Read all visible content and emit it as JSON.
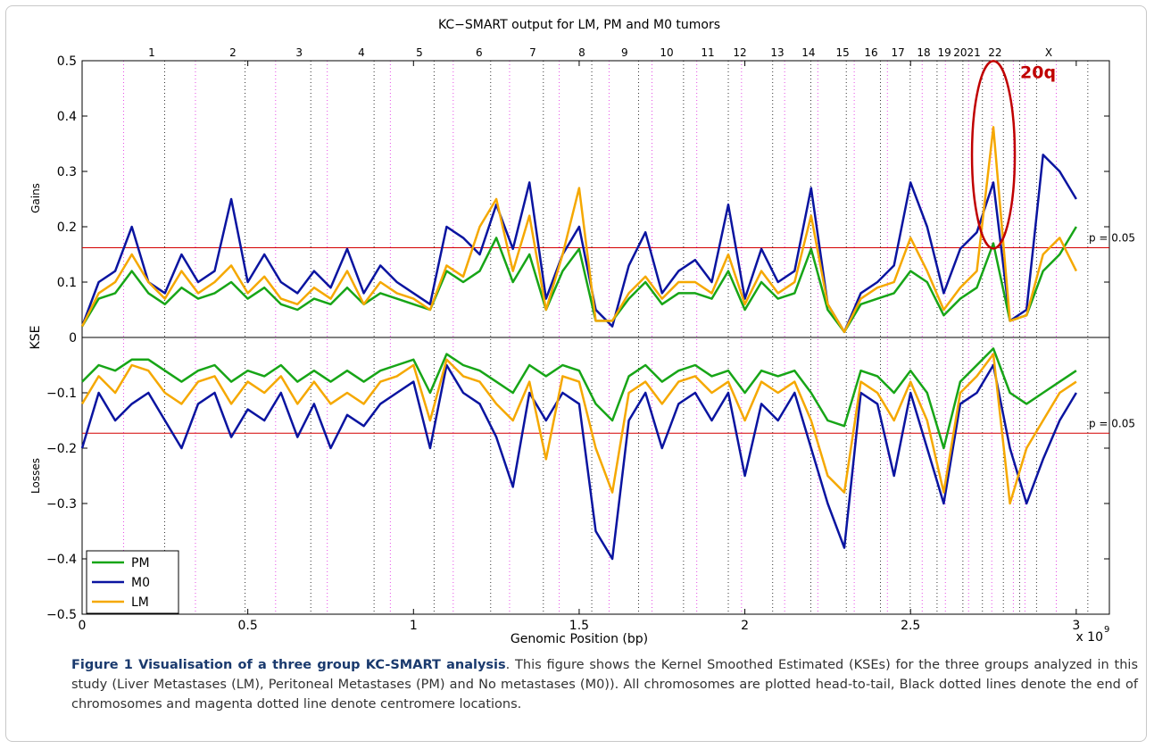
{
  "chart_data": {
    "type": "line",
    "title": "KC−SMART output for LM, PM and M0 tumors",
    "xlabel": "Genomic Position (bp)",
    "ylabel": "KSE",
    "gains_label": "Gains",
    "losses_label": "Losses",
    "x_multiplier": "x 10",
    "x_multiplier_exp": "9",
    "xlim": [
      0,
      3.1
    ],
    "ylim": [
      -0.5,
      0.5
    ],
    "xticks": [
      0,
      0.5,
      1,
      1.5,
      2,
      2.5,
      3
    ],
    "yticks": [
      {
        "value": -0.5,
        "label": "−0.5"
      },
      {
        "value": -0.4,
        "label": "−0.4"
      },
      {
        "value": -0.3,
        "label": "−0.3"
      },
      {
        "value": -0.2,
        "label": "−0.2"
      },
      {
        "value": -0.1,
        "label": "−0.1"
      },
      0,
      0.1,
      0.2,
      0.3,
      0.4,
      0.5
    ],
    "thresholds": [
      {
        "value": 0.162,
        "label": "p = 0.05"
      },
      {
        "value": -0.173,
        "label": "p = 0.05"
      }
    ],
    "threshold_color": "#d40000",
    "chromosomes": {
      "labels": [
        "1",
        "2",
        "3",
        "4",
        "5",
        "6",
        "7",
        "8",
        "9",
        "10",
        "11",
        "12",
        "13",
        "14",
        "15",
        "16",
        "17",
        "18",
        "19",
        "20",
        "21",
        "22",
        "X"
      ],
      "positions": [
        0.21,
        0.455,
        0.655,
        0.843,
        1.018,
        1.198,
        1.36,
        1.508,
        1.637,
        1.764,
        1.888,
        1.985,
        2.098,
        2.192,
        2.295,
        2.381,
        2.462,
        2.54,
        2.602,
        2.65,
        2.691,
        2.755,
        2.917
      ]
    },
    "chromosome_ends": [
      0.249,
      0.492,
      0.69,
      0.881,
      1.062,
      1.233,
      1.392,
      1.538,
      1.679,
      1.815,
      1.95,
      2.084,
      2.199,
      2.306,
      2.409,
      2.499,
      2.58,
      2.658,
      2.717,
      2.78,
      2.829,
      2.88,
      3.035
    ],
    "centromeres": [
      0.125,
      0.342,
      0.584,
      0.74,
      0.93,
      1.12,
      1.29,
      1.44,
      1.59,
      1.72,
      1.855,
      1.99,
      2.12,
      2.22,
      2.33,
      2.43,
      2.535,
      2.605,
      2.675,
      2.745,
      2.81,
      2.845,
      2.94
    ],
    "annotation": {
      "text": "20q",
      "x": 2.75,
      "y": 0.33,
      "color": "#c00000"
    },
    "legend": "lower left",
    "x": [
      0,
      0.05,
      0.1,
      0.15,
      0.2,
      0.25,
      0.3,
      0.35,
      0.4,
      0.45,
      0.5,
      0.55,
      0.6,
      0.65,
      0.7,
      0.75,
      0.8,
      0.85,
      0.9,
      0.95,
      1,
      1.05,
      1.1,
      1.15,
      1.2,
      1.25,
      1.3,
      1.35,
      1.4,
      1.45,
      1.5,
      1.55,
      1.6,
      1.65,
      1.7,
      1.75,
      1.8,
      1.85,
      1.9,
      1.95,
      2,
      2.05,
      2.1,
      2.15,
      2.2,
      2.25,
      2.3,
      2.35,
      2.4,
      2.45,
      2.5,
      2.55,
      2.6,
      2.65,
      2.7,
      2.75,
      2.8,
      2.85,
      2.9,
      2.95,
      3
    ],
    "series": [
      {
        "name": "PM",
        "color": "#17a517",
        "values": [
          0.02,
          0.07,
          0.08,
          0.12,
          0.08,
          0.06,
          0.09,
          0.07,
          0.08,
          0.1,
          0.07,
          0.09,
          0.06,
          0.05,
          0.07,
          0.06,
          0.09,
          0.06,
          0.08,
          0.07,
          0.06,
          0.05,
          0.12,
          0.1,
          0.12,
          0.18,
          0.1,
          0.15,
          0.05,
          0.12,
          0.16,
          0.03,
          0.03,
          0.07,
          0.1,
          0.06,
          0.08,
          0.08,
          0.07,
          0.12,
          0.05,
          0.1,
          0.07,
          0.08,
          0.16,
          0.05,
          0.01,
          0.06,
          0.07,
          0.08,
          0.12,
          0.1,
          0.04,
          0.07,
          0.09,
          0.17,
          0.03,
          0.04,
          0.12,
          0.15,
          0.2
        ],
        "losses": [
          -0.08,
          -0.05,
          -0.06,
          -0.04,
          -0.04,
          -0.06,
          -0.08,
          -0.06,
          -0.05,
          -0.08,
          -0.06,
          -0.07,
          -0.05,
          -0.08,
          -0.06,
          -0.08,
          -0.06,
          -0.08,
          -0.06,
          -0.05,
          -0.04,
          -0.1,
          -0.03,
          -0.05,
          -0.06,
          -0.08,
          -0.1,
          -0.05,
          -0.07,
          -0.05,
          -0.06,
          -0.12,
          -0.15,
          -0.07,
          -0.05,
          -0.08,
          -0.06,
          -0.05,
          -0.07,
          -0.06,
          -0.1,
          -0.06,
          -0.07,
          -0.06,
          -0.1,
          -0.15,
          -0.16,
          -0.06,
          -0.07,
          -0.1,
          -0.06,
          -0.1,
          -0.2,
          -0.08,
          -0.05,
          -0.02,
          -0.1,
          -0.12,
          -0.1,
          -0.08,
          -0.06
        ]
      },
      {
        "name": "M0",
        "color": "#0a14a0",
        "values": [
          0.02,
          0.1,
          0.12,
          0.2,
          0.1,
          0.08,
          0.15,
          0.1,
          0.12,
          0.25,
          0.1,
          0.15,
          0.1,
          0.08,
          0.12,
          0.09,
          0.16,
          0.08,
          0.13,
          0.1,
          0.08,
          0.06,
          0.2,
          0.18,
          0.15,
          0.24,
          0.16,
          0.28,
          0.07,
          0.15,
          0.2,
          0.05,
          0.02,
          0.13,
          0.19,
          0.08,
          0.12,
          0.14,
          0.1,
          0.24,
          0.07,
          0.16,
          0.1,
          0.12,
          0.27,
          0.06,
          0.01,
          0.08,
          0.1,
          0.13,
          0.28,
          0.2,
          0.08,
          0.16,
          0.19,
          0.28,
          0.03,
          0.05,
          0.33,
          0.3,
          0.25
        ],
        "losses": [
          -0.2,
          -0.1,
          -0.15,
          -0.12,
          -0.1,
          -0.15,
          -0.2,
          -0.12,
          -0.1,
          -0.18,
          -0.13,
          -0.15,
          -0.1,
          -0.18,
          -0.12,
          -0.2,
          -0.14,
          -0.16,
          -0.12,
          -0.1,
          -0.08,
          -0.2,
          -0.05,
          -0.1,
          -0.12,
          -0.18,
          -0.27,
          -0.1,
          -0.15,
          -0.1,
          -0.12,
          -0.35,
          -0.4,
          -0.15,
          -0.1,
          -0.2,
          -0.12,
          -0.1,
          -0.15,
          -0.1,
          -0.25,
          -0.12,
          -0.15,
          -0.1,
          -0.2,
          -0.3,
          -0.38,
          -0.1,
          -0.12,
          -0.25,
          -0.1,
          -0.2,
          -0.3,
          -0.12,
          -0.1,
          -0.05,
          -0.2,
          -0.3,
          -0.22,
          -0.15,
          -0.1
        ]
      },
      {
        "name": "LM",
        "color": "#f5a800",
        "values": [
          0.02,
          0.08,
          0.1,
          0.15,
          0.1,
          0.07,
          0.12,
          0.08,
          0.1,
          0.13,
          0.08,
          0.11,
          0.07,
          0.06,
          0.09,
          0.07,
          0.12,
          0.06,
          0.1,
          0.08,
          0.07,
          0.05,
          0.13,
          0.11,
          0.2,
          0.25,
          0.12,
          0.22,
          0.05,
          0.15,
          0.27,
          0.03,
          0.03,
          0.08,
          0.11,
          0.07,
          0.1,
          0.1,
          0.08,
          0.15,
          0.06,
          0.12,
          0.08,
          0.1,
          0.22,
          0.06,
          0.01,
          0.07,
          0.09,
          0.1,
          0.18,
          0.12,
          0.05,
          0.09,
          0.12,
          0.38,
          0.03,
          0.04,
          0.15,
          0.18,
          0.12
        ],
        "losses": [
          -0.12,
          -0.07,
          -0.1,
          -0.05,
          -0.06,
          -0.1,
          -0.12,
          -0.08,
          -0.07,
          -0.12,
          -0.08,
          -0.1,
          -0.07,
          -0.12,
          -0.08,
          -0.12,
          -0.1,
          -0.12,
          -0.08,
          -0.07,
          -0.05,
          -0.15,
          -0.04,
          -0.07,
          -0.08,
          -0.12,
          -0.15,
          -0.08,
          -0.22,
          -0.07,
          -0.08,
          -0.2,
          -0.28,
          -0.1,
          -0.08,
          -0.12,
          -0.08,
          -0.07,
          -0.1,
          -0.08,
          -0.15,
          -0.08,
          -0.1,
          -0.08,
          -0.15,
          -0.25,
          -0.28,
          -0.08,
          -0.1,
          -0.15,
          -0.08,
          -0.15,
          -0.28,
          -0.1,
          -0.07,
          -0.03,
          -0.3,
          -0.2,
          -0.15,
          -0.1,
          -0.08
        ]
      }
    ],
    "caption_title": "Figure 1 Visualisation of a three group KC-SMART analysis",
    "caption_text": ". This figure shows the Kernel Smoothed Estimated (KSEs) for the three groups analyzed in this study (Liver Metastases (LM), Peritoneal Metastases (PM) and No metastases (M0)). All chromosomes are plotted head-to-tail, Black dotted lines denote the end of chromosomes and magenta dotted line denote centromere locations."
  }
}
